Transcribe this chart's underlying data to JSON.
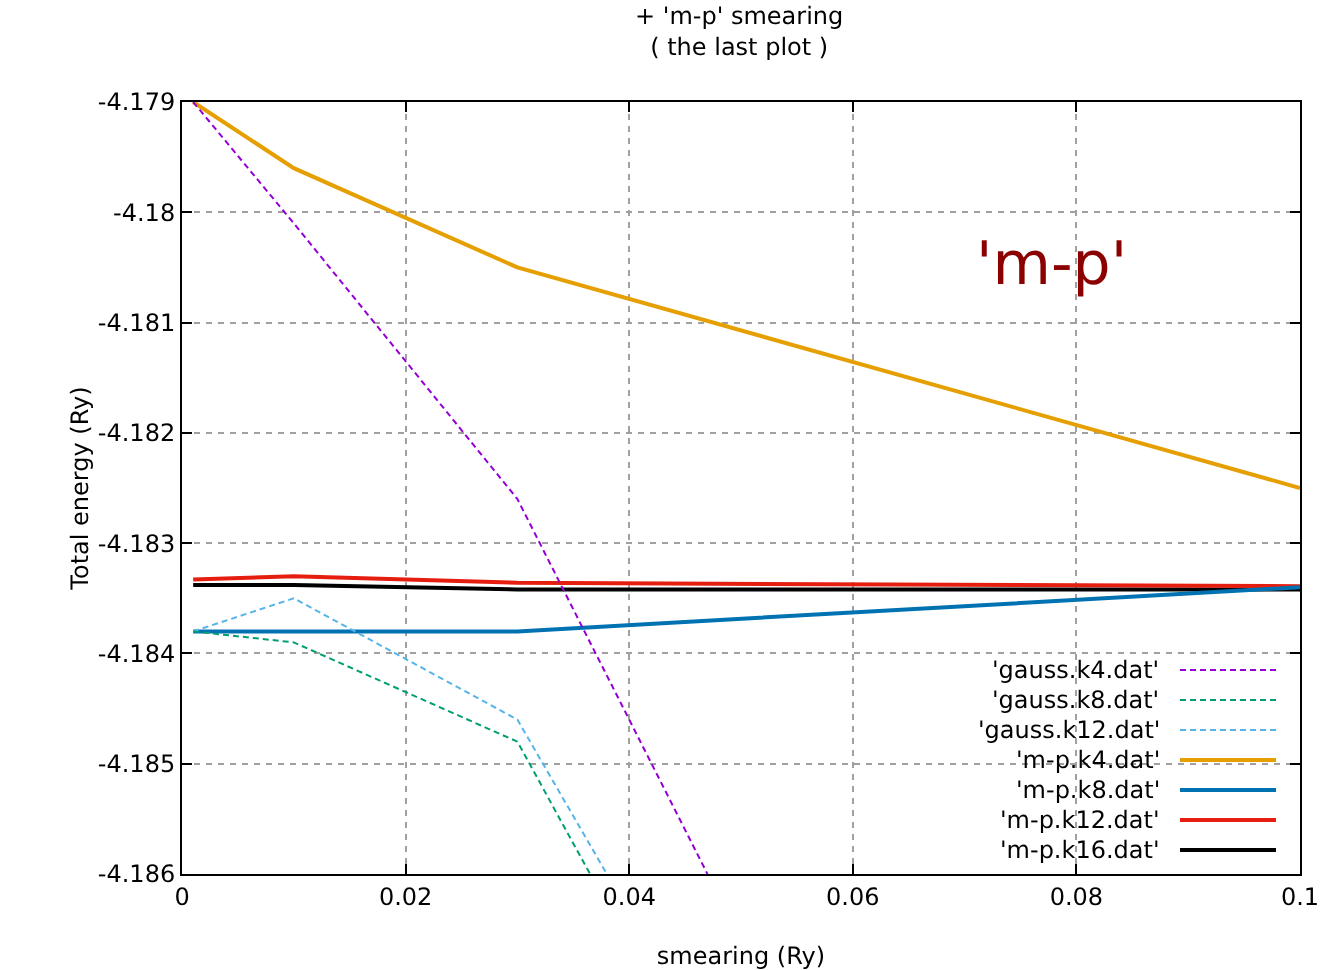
{
  "chart_data": {
    "type": "line",
    "title": "+ 'm-p' smearing\n( the last plot )",
    "xlabel": "smearing (Ry)",
    "ylabel": "Total energy (Ry)",
    "annotations": [
      "'m-p'"
    ],
    "xlim": [
      0,
      0.1
    ],
    "xticks": [
      0,
      0.02,
      0.04,
      0.06,
      0.08,
      0.1
    ],
    "ylim": [
      -4.186,
      -4.179
    ],
    "yticks": [
      -4.186,
      -4.185,
      -4.184,
      -4.183,
      -4.182,
      -4.181,
      -4.18,
      -4.179
    ],
    "grid": true,
    "legend": "bottom right",
    "marker": "none",
    "series": [
      {
        "name": "'gauss.k4.dat'",
        "color": "#9400d3",
        "line_style": "dashed",
        "x": [
          0.001,
          0.01,
          0.03,
          0.047
        ],
        "values": [
          -4.179,
          -4.1801,
          -4.1826,
          -4.186
        ]
      },
      {
        "name": "'gauss.k8.dat'",
        "color": "#009e73",
        "line_style": "dashed",
        "x": [
          0.001,
          0.01,
          0.03,
          0.0365
        ],
        "values": [
          -4.1838,
          -4.1839,
          -4.1848,
          -4.186
        ]
      },
      {
        "name": "'gauss.k12.dat'",
        "color": "#56b4e9",
        "line_style": "dashed",
        "x": [
          0.001,
          0.01,
          0.03,
          0.038
        ],
        "values": [
          -4.1838,
          -4.1835,
          -4.1846,
          -4.186
        ]
      },
      {
        "name": "'m-p.k4.dat'",
        "color": "#e69f00",
        "line_style": "solid",
        "x": [
          0.001,
          0.01,
          0.03,
          0.1
        ],
        "values": [
          -4.179,
          -4.1796,
          -4.1805,
          -4.1825
        ]
      },
      {
        "name": "'m-p.k8.dat'",
        "color": "#0072b2",
        "line_style": "solid",
        "x": [
          0.001,
          0.01,
          0.03,
          0.1
        ],
        "values": [
          -4.1838,
          -4.1838,
          -4.1838,
          -4.1834
        ]
      },
      {
        "name": "'m-p.k12.dat'",
        "color": "#e51e10",
        "line_style": "solid",
        "x": [
          0.001,
          0.01,
          0.03,
          0.1
        ],
        "values": [
          -4.18333,
          -4.1833,
          -4.18336,
          -4.18339
        ]
      },
      {
        "name": "'m-p.k16.dat'",
        "color": "#000000",
        "line_style": "solid",
        "x": [
          0.001,
          0.01,
          0.03,
          0.1
        ],
        "values": [
          -4.18338,
          -4.18338,
          -4.18342,
          -4.18342
        ]
      }
    ]
  }
}
